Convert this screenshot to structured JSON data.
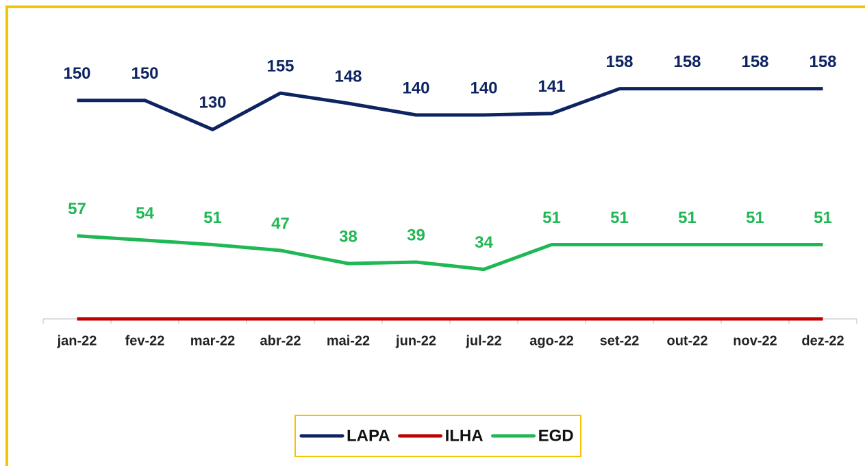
{
  "chart_data": {
    "type": "line",
    "categories": [
      "jan-22",
      "fev-22",
      "mar-22",
      "abr-22",
      "mai-22",
      "jun-22",
      "jul-22",
      "ago-22",
      "set-22",
      "out-22",
      "nov-22",
      "dez-22"
    ],
    "series": [
      {
        "name": "LAPA",
        "color": "#0d2461",
        "data_labels": true,
        "values": [
          150,
          150,
          130,
          155,
          148,
          140,
          140,
          141,
          158,
          158,
          158,
          158
        ]
      },
      {
        "name": "ILHA",
        "color": "#c00000",
        "data_labels": false,
        "values": [
          0,
          0,
          0,
          0,
          0,
          0,
          0,
          0,
          0,
          0,
          0,
          0
        ]
      },
      {
        "name": "EGD",
        "color": "#1fb855",
        "data_labels": true,
        "values": [
          57,
          54,
          51,
          47,
          38,
          39,
          34,
          51,
          51,
          51,
          51,
          51
        ]
      }
    ],
    "ylim": [
      0,
      210
    ],
    "legend": "bottom"
  }
}
